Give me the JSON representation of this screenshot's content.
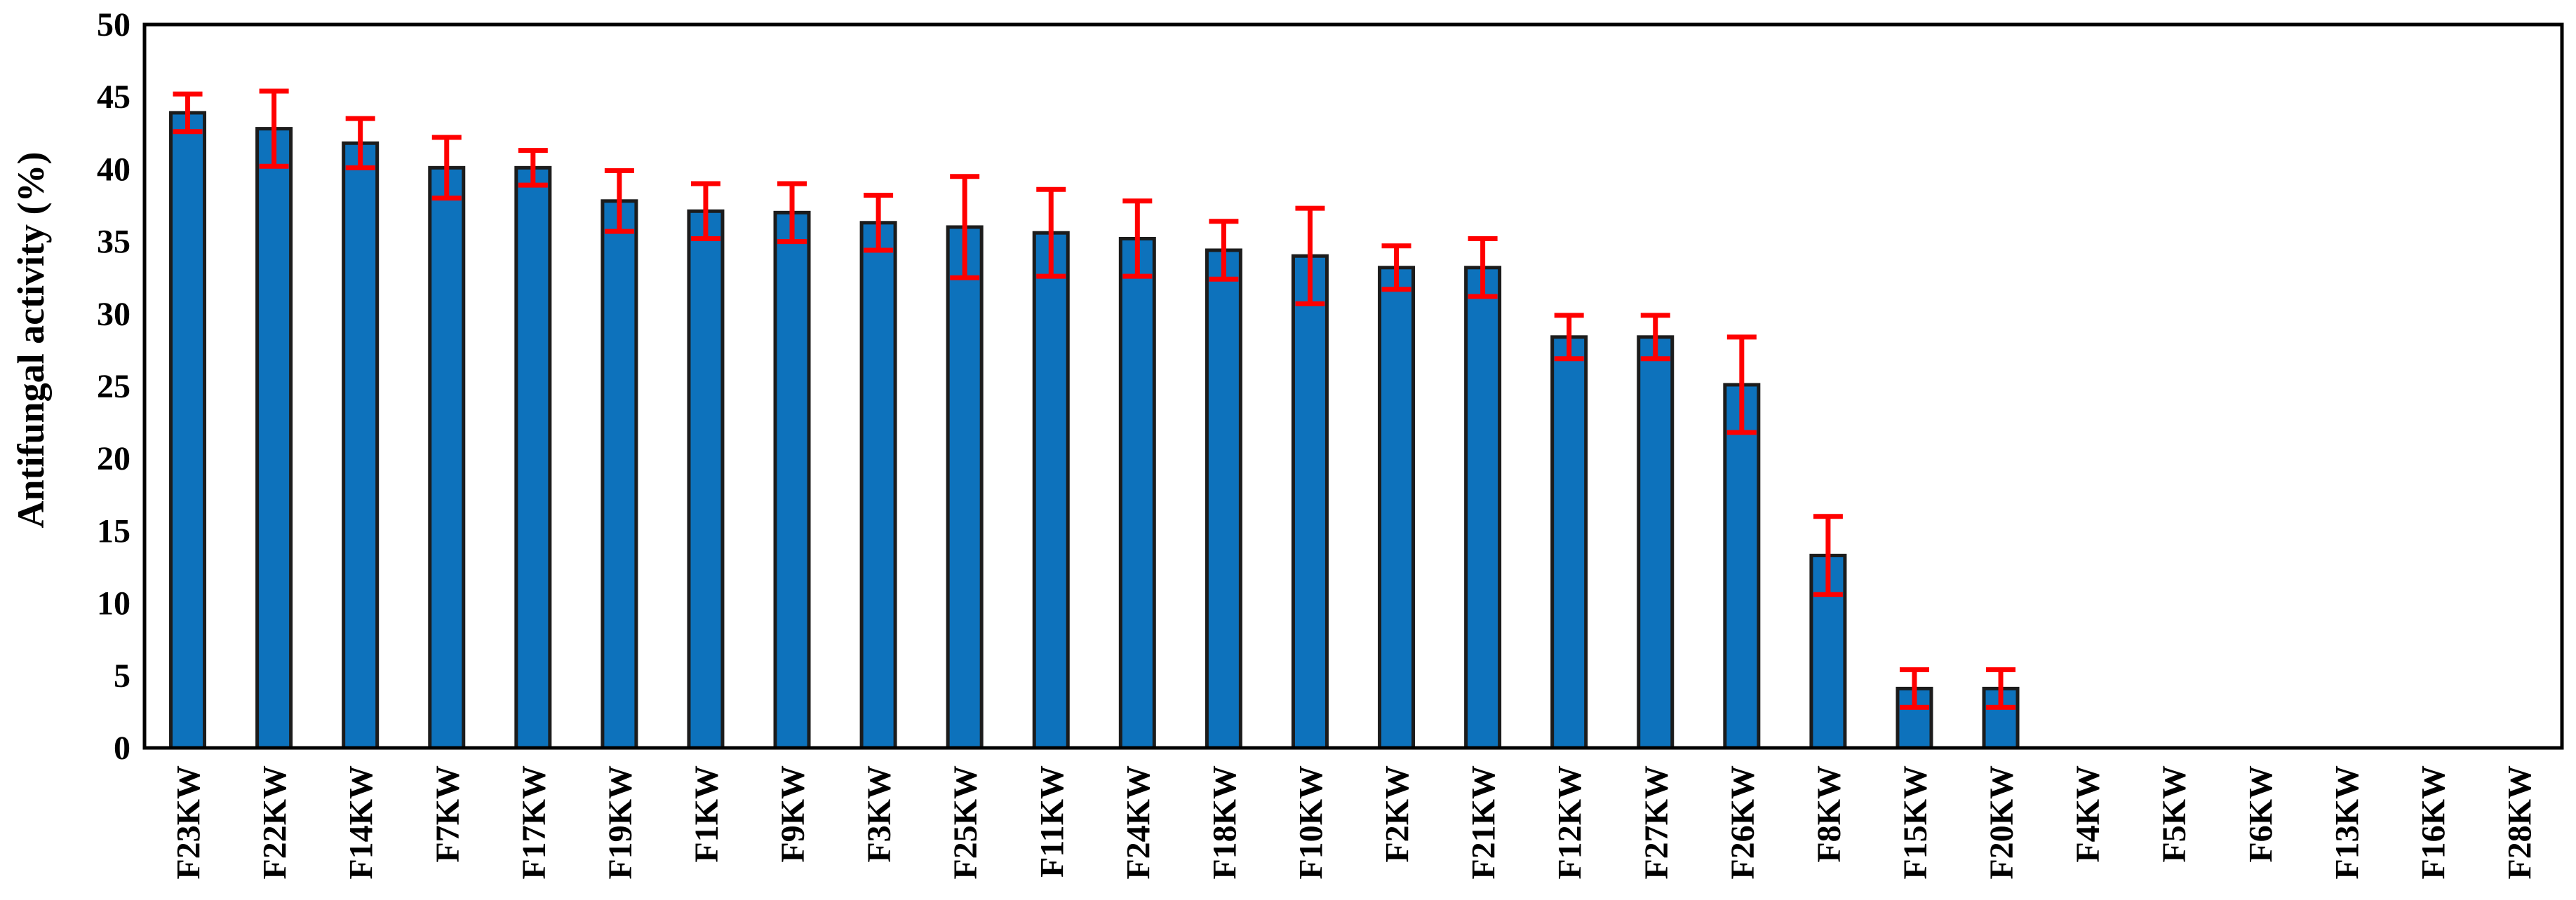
{
  "chart_data": {
    "type": "bar",
    "title": "",
    "ylabel": "Antifungal activity (%)",
    "xlabel": "",
    "ylim": [
      0,
      50
    ],
    "ytick_step": 5,
    "ytick_labels": [
      "0",
      "5",
      "10",
      "15",
      "20",
      "25",
      "30",
      "35",
      "40",
      "45",
      "50"
    ],
    "grid": false,
    "legend": null,
    "categories": [
      "F23KW",
      "F22KW",
      "F14KW",
      "F7KW",
      "F17KW",
      "F19KW",
      "F1KW",
      "F9KW",
      "F3KW",
      "F25KW",
      "F11KW",
      "F24KW",
      "F18KW",
      "F10KW",
      "F2KW",
      "F21KW",
      "F12KW",
      "F27KW",
      "F26KW",
      "F8KW",
      "F15KW",
      "F20KW",
      "F4KW",
      "F5KW",
      "F6KW",
      "F13KW",
      "F16KW",
      "F28KW"
    ],
    "values": [
      43.9,
      42.8,
      41.8,
      40.1,
      40.1,
      37.8,
      37.1,
      37.0,
      36.3,
      36.0,
      35.6,
      35.2,
      34.4,
      34.0,
      33.2,
      33.2,
      28.4,
      28.4,
      25.1,
      13.3,
      4.1,
      4.1,
      0,
      0,
      0,
      0,
      0,
      0
    ],
    "errors": [
      1.3,
      2.6,
      1.7,
      2.1,
      1.2,
      2.1,
      1.9,
      2.0,
      1.9,
      3.5,
      3.0,
      2.6,
      2.0,
      3.3,
      1.5,
      2.0,
      1.5,
      1.5,
      3.3,
      2.7,
      1.3,
      1.3,
      0,
      0,
      0,
      0,
      0,
      0
    ],
    "colors": {
      "bar_fill": "#0D72BC",
      "bar_border": "#1C1C1C",
      "error_bar": "#FF0000",
      "axis": "#000000",
      "text": "#000000",
      "background": "#FFFFFF"
    }
  }
}
